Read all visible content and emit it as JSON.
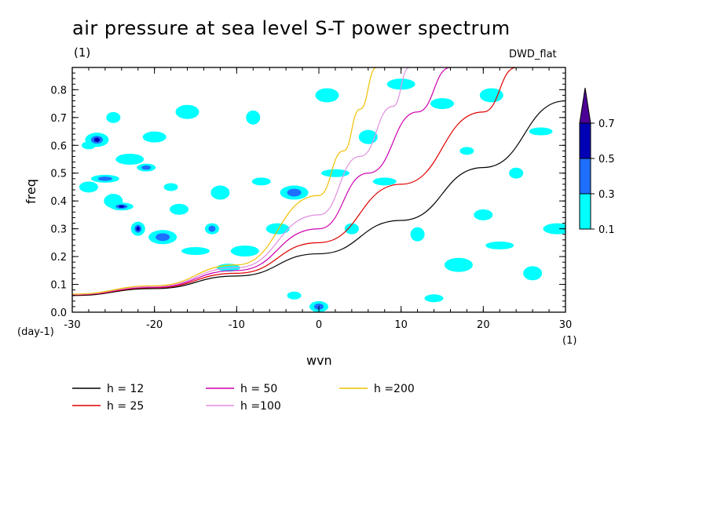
{
  "title": "air pressure at sea level S-T power spectrum",
  "top_left_unit": "(1)",
  "model": "DWD_flat",
  "chart_data": {
    "type": "heatmap",
    "xlabel": "wvn",
    "ylabel": "freq",
    "x_unit": "(1)",
    "y_unit": "(day-1)",
    "xlim": [
      -30,
      30
    ],
    "ylim": [
      0,
      0.88
    ],
    "xticks": [
      -30,
      -20,
      -10,
      0,
      10,
      20,
      30
    ],
    "yticks": [
      0.0,
      0.1,
      0.2,
      0.3,
      0.4,
      0.5,
      0.6,
      0.7,
      0.8
    ],
    "xtick_labels": [
      "-30",
      "-20",
      "-10",
      "0",
      "10",
      "20",
      "30"
    ],
    "ytick_labels": [
      "0.0",
      "0.1",
      "0.2",
      "0.3",
      "0.4",
      "0.5",
      "0.6",
      "0.7",
      "0.8"
    ],
    "colorbar": {
      "levels": [
        "0.1",
        "0.3",
        "0.5",
        "0.7"
      ],
      "colors": [
        "#00ffff",
        "#1e6fff",
        "#0000b4",
        "#4b0096"
      ]
    },
    "contour_regions": [
      {
        "x": -28,
        "y": 0.6,
        "level": 0
      },
      {
        "x": -28,
        "y": 0.45,
        "level": 0
      },
      {
        "x": -27,
        "y": 0.62,
        "level": 2
      },
      {
        "x": -26,
        "y": 0.48,
        "level": 1
      },
      {
        "x": -25,
        "y": 0.7,
        "level": 0
      },
      {
        "x": -25,
        "y": 0.4,
        "level": 0
      },
      {
        "x": -24,
        "y": 0.38,
        "level": 2
      },
      {
        "x": -23,
        "y": 0.55,
        "level": 0
      },
      {
        "x": -22,
        "y": 0.3,
        "level": 2
      },
      {
        "x": -21,
        "y": 0.52,
        "level": 1
      },
      {
        "x": -20,
        "y": 0.63,
        "level": 0
      },
      {
        "x": -19,
        "y": 0.27,
        "level": 1
      },
      {
        "x": -18,
        "y": 0.45,
        "level": 0
      },
      {
        "x": -17,
        "y": 0.37,
        "level": 0
      },
      {
        "x": -16,
        "y": 0.72,
        "level": 0
      },
      {
        "x": -15,
        "y": 0.22,
        "level": 0
      },
      {
        "x": -13,
        "y": 0.3,
        "level": 1
      },
      {
        "x": -12,
        "y": 0.43,
        "level": 0
      },
      {
        "x": -11,
        "y": 0.16,
        "level": 0
      },
      {
        "x": -9,
        "y": 0.22,
        "level": 0
      },
      {
        "x": -8,
        "y": 0.7,
        "level": 0
      },
      {
        "x": -7,
        "y": 0.47,
        "level": 0
      },
      {
        "x": -5,
        "y": 0.3,
        "level": 0
      },
      {
        "x": -3,
        "y": 0.43,
        "level": 1
      },
      {
        "x": -3,
        "y": 0.06,
        "level": 0
      },
      {
        "x": 0,
        "y": 0.02,
        "level": 1
      },
      {
        "x": 1,
        "y": 0.78,
        "level": 0
      },
      {
        "x": 2,
        "y": 0.5,
        "level": 0
      },
      {
        "x": 4,
        "y": 0.3,
        "level": 0
      },
      {
        "x": 6,
        "y": 0.63,
        "level": 0
      },
      {
        "x": 8,
        "y": 0.47,
        "level": 0
      },
      {
        "x": 10,
        "y": 0.82,
        "level": 0
      },
      {
        "x": 12,
        "y": 0.28,
        "level": 0
      },
      {
        "x": 14,
        "y": 0.05,
        "level": 0
      },
      {
        "x": 15,
        "y": 0.75,
        "level": 0
      },
      {
        "x": 17,
        "y": 0.17,
        "level": 0
      },
      {
        "x": 18,
        "y": 0.58,
        "level": 0
      },
      {
        "x": 20,
        "y": 0.35,
        "level": 0
      },
      {
        "x": 21,
        "y": 0.78,
        "level": 0
      },
      {
        "x": 22,
        "y": 0.24,
        "level": 0
      },
      {
        "x": 24,
        "y": 0.5,
        "level": 0
      },
      {
        "x": 26,
        "y": 0.14,
        "level": 0
      },
      {
        "x": 27,
        "y": 0.65,
        "level": 0
      },
      {
        "x": 29,
        "y": 0.3,
        "level": 0
      }
    ],
    "series": [
      {
        "name": "h = 12",
        "h": 12,
        "color": "#000000"
      },
      {
        "name": "h = 25",
        "h": 25,
        "color": "#e00000"
      },
      {
        "name": "h = 50",
        "h": 50,
        "color": "#d000b0"
      },
      {
        "name": "h =100",
        "h": 100,
        "color": "#e090e0"
      },
      {
        "name": "h =200",
        "h": 200,
        "color": "#f0c000"
      }
    ],
    "curves": [
      {
        "name": "h = 12",
        "points": [
          [
            -30,
            0.06
          ],
          [
            -20,
            0.085
          ],
          [
            -10,
            0.13
          ],
          [
            0,
            0.21
          ],
          [
            10,
            0.33
          ],
          [
            20,
            0.52
          ],
          [
            30,
            0.76
          ]
        ]
      },
      {
        "name": "h = 25",
        "points": [
          [
            -30,
            0.062
          ],
          [
            -20,
            0.088
          ],
          [
            -10,
            0.14
          ],
          [
            0,
            0.25
          ],
          [
            10,
            0.46
          ],
          [
            20,
            0.72
          ],
          [
            24,
            0.88
          ]
        ]
      },
      {
        "name": "h = 50",
        "points": [
          [
            -30,
            0.063
          ],
          [
            -20,
            0.09
          ],
          [
            -10,
            0.15
          ],
          [
            0,
            0.3
          ],
          [
            6,
            0.5
          ],
          [
            12,
            0.72
          ],
          [
            16,
            0.88
          ]
        ]
      },
      {
        "name": "h =100",
        "points": [
          [
            -30,
            0.064
          ],
          [
            -20,
            0.092
          ],
          [
            -10,
            0.16
          ],
          [
            0,
            0.35
          ],
          [
            5,
            0.56
          ],
          [
            9,
            0.74
          ],
          [
            11,
            0.88
          ]
        ]
      },
      {
        "name": "h =200",
        "points": [
          [
            -30,
            0.065
          ],
          [
            -20,
            0.095
          ],
          [
            -10,
            0.17
          ],
          [
            0,
            0.42
          ],
          [
            3,
            0.58
          ],
          [
            5,
            0.73
          ],
          [
            7,
            0.88
          ]
        ]
      }
    ]
  }
}
